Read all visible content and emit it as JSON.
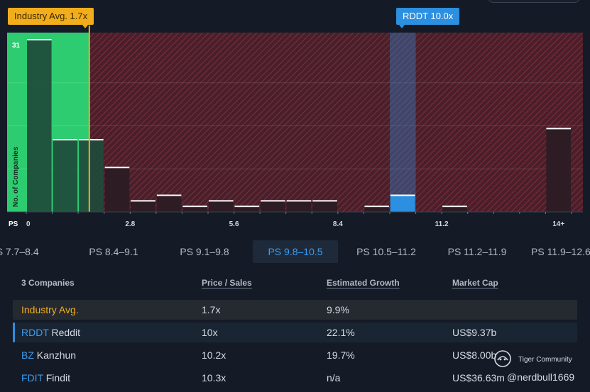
{
  "chart_data": {
    "type": "bar",
    "x_axis_prefix": "PS",
    "x_tick_labels": [
      "0",
      "2.8",
      "5.6",
      "8.4",
      "11.2",
      "14+"
    ],
    "ylabel": "No. of Companies",
    "top_value_label": "31",
    "ylim": [
      0,
      31
    ],
    "bins": [
      {
        "start": 0.0,
        "end": 0.7,
        "value": 31
      },
      {
        "start": 0.7,
        "end": 1.4,
        "value": 13
      },
      {
        "start": 1.4,
        "end": 2.1,
        "value": 13
      },
      {
        "start": 2.1,
        "end": 2.8,
        "value": 8
      },
      {
        "start": 2.8,
        "end": 3.5,
        "value": 2
      },
      {
        "start": 3.5,
        "end": 4.2,
        "value": 3
      },
      {
        "start": 4.2,
        "end": 4.9,
        "value": 1
      },
      {
        "start": 4.9,
        "end": 5.6,
        "value": 2
      },
      {
        "start": 5.6,
        "end": 6.3,
        "value": 1
      },
      {
        "start": 6.3,
        "end": 7.0,
        "value": 2
      },
      {
        "start": 7.0,
        "end": 7.7,
        "value": 2
      },
      {
        "start": 7.7,
        "end": 8.4,
        "value": 2
      },
      {
        "start": 8.4,
        "end": 9.1,
        "value": 0
      },
      {
        "start": 9.1,
        "end": 9.8,
        "value": 1
      },
      {
        "start": 9.8,
        "end": 10.5,
        "value": 3,
        "highlighted": true
      },
      {
        "start": 10.5,
        "end": 11.2,
        "value": 0
      },
      {
        "start": 11.2,
        "end": 11.9,
        "value": 1
      },
      {
        "start": 11.9,
        "end": 12.6,
        "value": 0
      },
      {
        "start": 12.6,
        "end": 13.3,
        "value": 0
      },
      {
        "start": 13.3,
        "end": 14.0,
        "value": 0
      },
      {
        "start": 14.0,
        "end": 14.7,
        "value": 15
      }
    ],
    "markers": [
      {
        "label": "Industry Avg. 1.7x",
        "value": 1.7,
        "color": "#f1ad1c"
      },
      {
        "label": "RDDT 10.0x",
        "value": 10.0,
        "color": "#2c8fe0"
      }
    ],
    "colors": {
      "undervalued_zone": "#2ecc71",
      "overvalued_zone": "#5e2430",
      "bar": "#1f4a3a",
      "highlight": "#2c8fe0"
    },
    "grid": true
  },
  "tabs": [
    {
      "label": "PS 7.7–8.4"
    },
    {
      "label": "PS 8.4–9.1"
    },
    {
      "label": "PS 9.1–9.8"
    },
    {
      "label": "PS 9.8–10.5",
      "active": true
    },
    {
      "label": "PS 10.5–11.2"
    },
    {
      "label": "PS 11.2–11.9"
    },
    {
      "label": "PS 11.9–12.6"
    }
  ],
  "table": {
    "headers": {
      "companies": "3 Companies",
      "price_sales": "Price / Sales",
      "growth": "Estimated Growth",
      "market_cap": "Market Cap"
    },
    "industry_row": {
      "name": "Industry Avg.",
      "ps": "1.7x",
      "growth": "9.9%",
      "cap": ""
    },
    "rows": [
      {
        "ticker": "RDDT",
        "name": "Reddit",
        "ps": "10x",
        "growth": "22.1%",
        "cap": "US$9.37b"
      },
      {
        "ticker": "BZ",
        "name": "Kanzhun",
        "ps": "10.2x",
        "growth": "19.7%",
        "cap": "US$8.00b"
      },
      {
        "ticker": "FDIT",
        "name": "Findit",
        "ps": "10.3x",
        "growth": "n/a",
        "cap": "US$36.63m"
      }
    ]
  },
  "watermark": {
    "brand": "Tiger Community",
    "handle": "@nerdbull1669"
  }
}
